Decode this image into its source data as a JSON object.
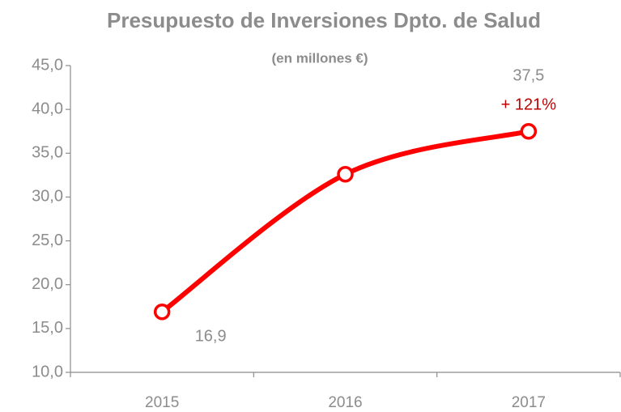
{
  "chart_data": {
    "type": "line",
    "title": "Presupuesto de Inversiones Dpto. de Salud",
    "subtitle": "(en millones €)",
    "categories": [
      "2015",
      "2016",
      "2017"
    ],
    "values": [
      16.9,
      32.6,
      37.5
    ],
    "value_labels": [
      "16,9",
      null,
      "37,5"
    ],
    "color": "#ff0000",
    "annotation": "+ 121%",
    "annotation_color": "#c00000",
    "ylim": [
      10,
      45
    ],
    "yticks": [
      {
        "value": 10,
        "label": "10,0"
      },
      {
        "value": 15,
        "label": "15,0"
      },
      {
        "value": 20,
        "label": "20,0"
      },
      {
        "value": 25,
        "label": "25,0"
      },
      {
        "value": 30,
        "label": "30,0"
      },
      {
        "value": 35,
        "label": "35,0"
      },
      {
        "value": 40,
        "label": "40,0"
      },
      {
        "value": 45,
        "label": "45,0"
      }
    ],
    "grid": false
  }
}
